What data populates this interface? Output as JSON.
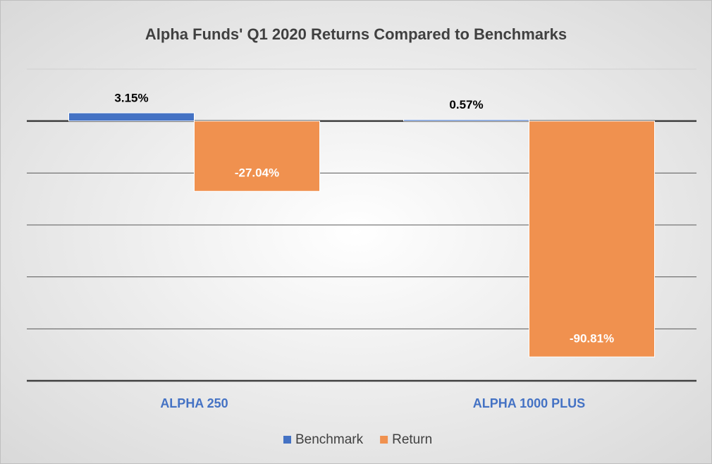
{
  "chart_data": {
    "type": "bar",
    "title": "Alpha Funds' Q1 2020 Returns Compared to Benchmarks",
    "categories": [
      "ALPHA 250",
      "ALPHA 1000 PLUS"
    ],
    "series": [
      {
        "name": "Benchmark",
        "color": "#4472c4",
        "values": [
          3.15,
          0.57
        ],
        "value_labels": [
          "3.15%",
          "0.57%"
        ]
      },
      {
        "name": "Return",
        "color": "#f0914f",
        "values": [
          -27.04,
          -90.81
        ],
        "value_labels": [
          "-27.04%",
          "-90.81%"
        ]
      }
    ],
    "ylim": [
      -100,
      20
    ],
    "yticks": [
      -100,
      -80,
      -60,
      -40,
      -20,
      0,
      20
    ],
    "grid": true,
    "legend": "bottom"
  }
}
